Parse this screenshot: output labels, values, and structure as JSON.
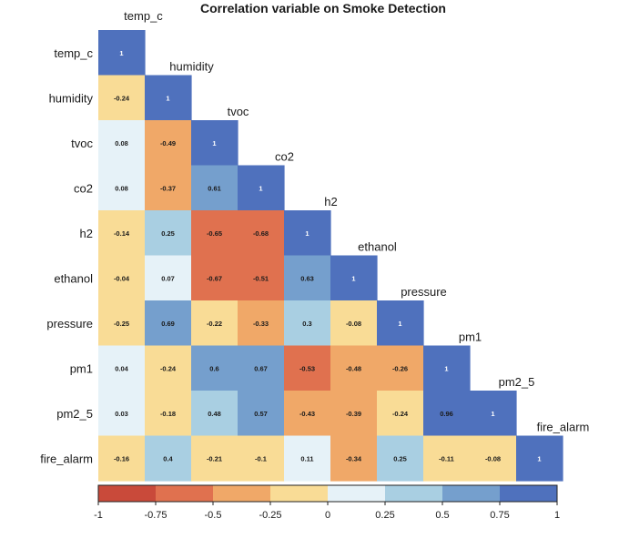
{
  "chart_data": {
    "type": "heatmap",
    "title": "Correlation variable on Smoke Detection",
    "variables": [
      "temp_c",
      "humidity",
      "tvoc",
      "co2",
      "h2",
      "ethanol",
      "pressure",
      "pm1",
      "pm2_5",
      "fire_alarm"
    ],
    "matrix_lower": [
      [
        1
      ],
      [
        -0.24,
        1
      ],
      [
        0.08,
        -0.49,
        1
      ],
      [
        0.08,
        -0.37,
        0.61,
        1
      ],
      [
        -0.14,
        0.25,
        -0.65,
        -0.68,
        1
      ],
      [
        -0.04,
        0.07,
        -0.67,
        -0.51,
        0.63,
        1
      ],
      [
        -0.25,
        0.69,
        -0.22,
        -0.33,
        0.3,
        -0.08,
        1
      ],
      [
        0.04,
        -0.24,
        0.6,
        0.67,
        -0.53,
        -0.48,
        -0.26,
        1
      ],
      [
        0.03,
        -0.18,
        0.48,
        0.57,
        -0.43,
        -0.39,
        -0.24,
        0.96,
        1
      ],
      [
        -0.16,
        0.4,
        -0.21,
        -0.1,
        0.11,
        -0.34,
        0.25,
        -0.11,
        -0.08,
        1
      ]
    ],
    "color_scale": {
      "range": [
        -1,
        1
      ],
      "bins": [
        {
          "from": -1,
          "to": -0.75,
          "color": "#c94a3a"
        },
        {
          "from": -0.75,
          "to": -0.5,
          "color": "#e0714f"
        },
        {
          "from": -0.5,
          "to": -0.25,
          "color": "#f0a868"
        },
        {
          "from": -0.25,
          "to": 0,
          "color": "#f9dc96"
        },
        {
          "from": 0,
          "to": 0.25,
          "color": "#e6f2f8"
        },
        {
          "from": 0.25,
          "to": 0.5,
          "color": "#a9cfe2"
        },
        {
          "from": 0.5,
          "to": 0.75,
          "color": "#759fcd"
        },
        {
          "from": 0.75,
          "to": 1,
          "color": "#4f71bd"
        }
      ],
      "ticks": [
        "-1",
        "-0.75",
        "-0.5",
        "-0.25",
        "0",
        "0.25",
        "0.5",
        "0.75",
        "1"
      ]
    },
    "legend": "bottom",
    "grid": false
  }
}
